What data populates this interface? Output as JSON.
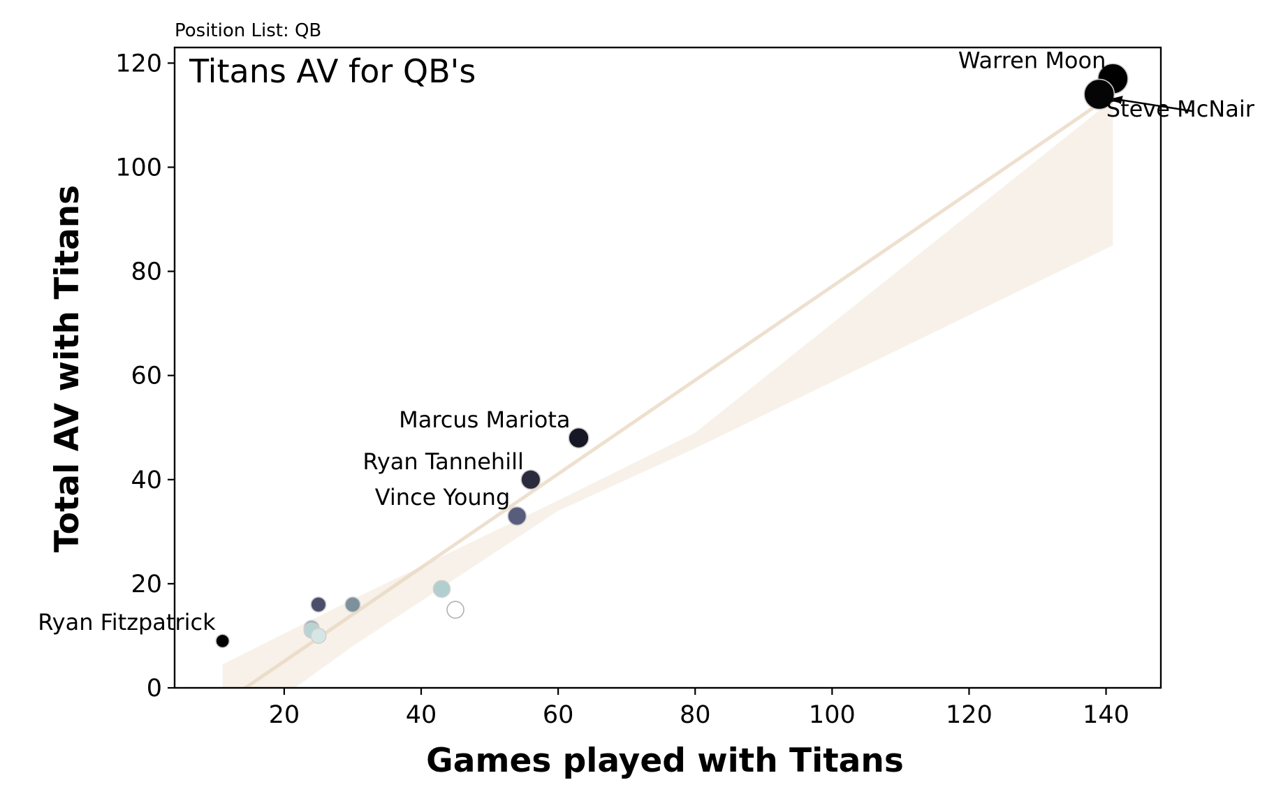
{
  "subtitle": "Position List: QB",
  "chart_data": {
    "type": "scatter",
    "title": "Titans AV for QB's",
    "xlabel": "Games played with Titans",
    "ylabel": "Total AV with Titans",
    "xlim": [
      4,
      148
    ],
    "ylim": [
      0,
      123
    ],
    "xticks": [
      20,
      40,
      60,
      80,
      100,
      120,
      140
    ],
    "yticks": [
      0,
      20,
      40,
      60,
      80,
      100,
      120
    ],
    "grid": false,
    "regression": {
      "line": [
        [
          11,
          -3
        ],
        [
          141,
          114
        ]
      ],
      "ci_upper": [
        [
          11,
          4.5
        ],
        [
          30,
          17
        ],
        [
          60,
          36
        ],
        [
          80,
          49
        ],
        [
          141,
          113
        ]
      ],
      "ci_lower": [
        [
          11,
          -10
        ],
        [
          30,
          8
        ],
        [
          60,
          34
        ],
        [
          80,
          46
        ],
        [
          141,
          85
        ]
      ],
      "color": "#e8d6bf"
    },
    "points": [
      {
        "x": 141,
        "y": 117,
        "color": "#000000",
        "size": 1.8,
        "label": "Warren Moon"
      },
      {
        "x": 139,
        "y": 114,
        "color": "#050505",
        "size": 1.8,
        "label": "Steve McNair"
      },
      {
        "x": 63,
        "y": 48,
        "color": "#171825",
        "size": 1.2,
        "label": "Marcus Mariota"
      },
      {
        "x": 56,
        "y": 40,
        "color": "#2a2b3d",
        "size": 1.15,
        "label": "Ryan Tannehill"
      },
      {
        "x": 54,
        "y": 33,
        "color": "#585d7c",
        "size": 1.1,
        "label": "Vince Young"
      },
      {
        "x": 11,
        "y": 9,
        "color": "#000000",
        "size": 0.8,
        "label": "Ryan Fitzpatrick"
      },
      {
        "x": 25,
        "y": 16,
        "color": "#4b4f6c",
        "size": 0.9,
        "label": ""
      },
      {
        "x": 30,
        "y": 16,
        "color": "#7d919c",
        "size": 0.9,
        "label": ""
      },
      {
        "x": 24,
        "y": 11.5,
        "color": "#9fb3b8",
        "size": 0.9,
        "label": ""
      },
      {
        "x": 24,
        "y": 11,
        "color": "#b8d3d3",
        "size": 0.9,
        "label": ""
      },
      {
        "x": 25,
        "y": 10,
        "color": "#d6e6e4",
        "size": 0.9,
        "label": ""
      },
      {
        "x": 43,
        "y": 19,
        "color": "#b2cfcf",
        "size": 1.0,
        "label": ""
      },
      {
        "x": 45,
        "y": 15,
        "color": "#ffffff",
        "size": 1.0,
        "label": ""
      }
    ]
  }
}
